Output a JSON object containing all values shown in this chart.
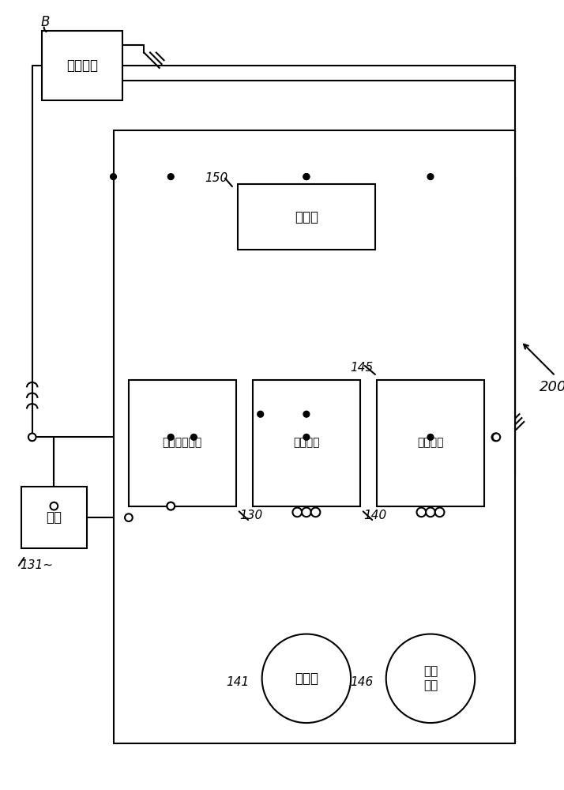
{
  "bg_color": "#ffffff",
  "lc": "#000000",
  "lw": 1.5,
  "fig_w": 7.14,
  "fig_h": 10.0,
  "dpi": 100,
  "labels": {
    "battery": "蓄電池組",
    "control": "控制部",
    "load_ctrl": "負載控制電路",
    "rectifier": "整流電路",
    "driver": "驅動電路",
    "load": "負載",
    "generator": "發電機",
    "starter": "起動\n馬達",
    "B": "B",
    "n150": "150",
    "n130": "130",
    "n140": "140",
    "n145": "145",
    "n141": "141",
    "n146": "146",
    "n200": "200",
    "n131": "131~"
  }
}
